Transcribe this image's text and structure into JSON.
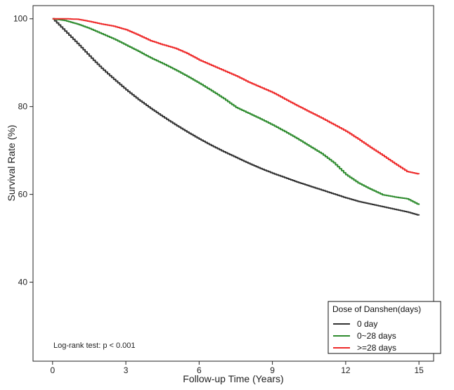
{
  "chart_data": {
    "type": "line",
    "title": "",
    "xlabel": "Follow-up Time (Years)",
    "ylabel": "Survival Rate (%)",
    "xlim": [
      -0.8,
      15.6
    ],
    "ylim": [
      22,
      103
    ],
    "x_ticks": [
      0,
      3,
      6,
      9,
      12,
      15
    ],
    "y_ticks": [
      40,
      60,
      80,
      100
    ],
    "grid": false,
    "legend_position": "bottom-right",
    "legend_title": "Dose of Danshen(days)",
    "annotation": "Log-rank test: p < 0.001",
    "series": [
      {
        "name": "0 day",
        "color": "#333333",
        "x": [
          0,
          0.5,
          1,
          1.5,
          2,
          2.5,
          3,
          3.5,
          4,
          4.5,
          5,
          5.5,
          6,
          6.5,
          7,
          7.5,
          8,
          8.5,
          9,
          9.5,
          10,
          10.5,
          11,
          11.5,
          12,
          12.5,
          13,
          13.5,
          14,
          14.5,
          15
        ],
        "y": [
          100,
          97.2,
          94.4,
          91.5,
          88.7,
          86.2,
          83.8,
          81.6,
          79.6,
          77.7,
          75.9,
          74.2,
          72.6,
          71.1,
          69.7,
          68.4,
          67.1,
          65.9,
          64.8,
          63.8,
          62.8,
          61.9,
          61.0,
          60.1,
          59.2,
          58.4,
          57.8,
          57.2,
          56.6,
          56.0,
          55.2
        ]
      },
      {
        "name": "0~28 days",
        "color": "#2e8b2e",
        "x": [
          0,
          0.5,
          1,
          1.5,
          2,
          2.5,
          3,
          3.5,
          4,
          4.5,
          5,
          5.5,
          6,
          6.5,
          7,
          7.5,
          8,
          8.5,
          9,
          9.5,
          10,
          10.5,
          11,
          11.5,
          12,
          12.5,
          13,
          13.5,
          14,
          14.5,
          15
        ],
        "y": [
          100,
          99.6,
          98.8,
          97.8,
          96.6,
          95.4,
          94.0,
          92.6,
          91.1,
          89.8,
          88.4,
          86.9,
          85.3,
          83.6,
          81.8,
          79.8,
          78.5,
          77.2,
          75.8,
          74.3,
          72.7,
          71.0,
          69.3,
          67.2,
          64.5,
          62.6,
          61.2,
          59.9,
          59.4,
          59.0,
          57.6
        ]
      },
      {
        "name": ">=28 days",
        "color": "#ee2b2b",
        "x": [
          0,
          0.5,
          1,
          1.5,
          2,
          2.5,
          3,
          3.5,
          4,
          4.5,
          5,
          5.5,
          6,
          6.5,
          7,
          7.5,
          8,
          8.5,
          9,
          9.5,
          10,
          10.5,
          11,
          11.5,
          12,
          12.5,
          13,
          13.5,
          14,
          14.5,
          15
        ],
        "y": [
          100,
          100,
          99.9,
          99.4,
          98.8,
          98.3,
          97.5,
          96.3,
          95.0,
          94.1,
          93.3,
          92.1,
          90.6,
          89.4,
          88.2,
          87.0,
          85.6,
          84.4,
          83.2,
          81.7,
          80.2,
          78.8,
          77.4,
          75.9,
          74.4,
          72.6,
          70.7,
          68.9,
          67.0,
          65.2,
          64.6
        ]
      }
    ]
  }
}
